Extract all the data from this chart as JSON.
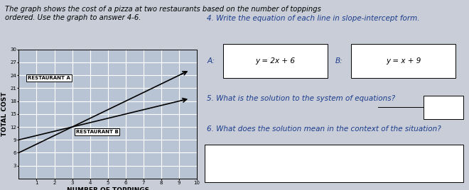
{
  "title_text": "The graph shows the cost of a pizza at two restaurants based on the number of toppings\nordered. Use the graph to answer 4-6.",
  "xlabel": "NUMBER OF TOPPINGS",
  "ylabel": "TOTAL COST",
  "xlim": [
    0,
    10
  ],
  "ylim": [
    0,
    30
  ],
  "xticks": [
    1,
    2,
    3,
    4,
    5,
    6,
    7,
    8,
    9,
    10
  ],
  "yticks": [
    3,
    6,
    9,
    12,
    15,
    18,
    21,
    24,
    27,
    30
  ],
  "rest_a_label": "RESTAURANT A",
  "rest_b_label": "RESTAURANT B",
  "rest_a_slope": 2,
  "rest_a_intercept": 6,
  "rest_b_slope": 1,
  "rest_b_intercept": 9,
  "line_color": "#000000",
  "bg_color": "#c8cdd8",
  "plot_bg": "#b8c4d4",
  "grid_color": "#ffffff",
  "question4_text": "4. Write the equation of each line in slope-intercept form.",
  "question4_a_label": "A:",
  "question4_a_eq": "y = 2x + 6",
  "question4_b_label": "B:",
  "question4_b_eq": "y = x + 9",
  "question5_text": "5. What is the solution to the system of equations?",
  "question6_text": "6. What does the solution mean in the context of the situation?",
  "text_color": "#1a3a8a",
  "font_size_q": 7.5,
  "font_size_ax": 6.5,
  "font_size_label": 5.5
}
